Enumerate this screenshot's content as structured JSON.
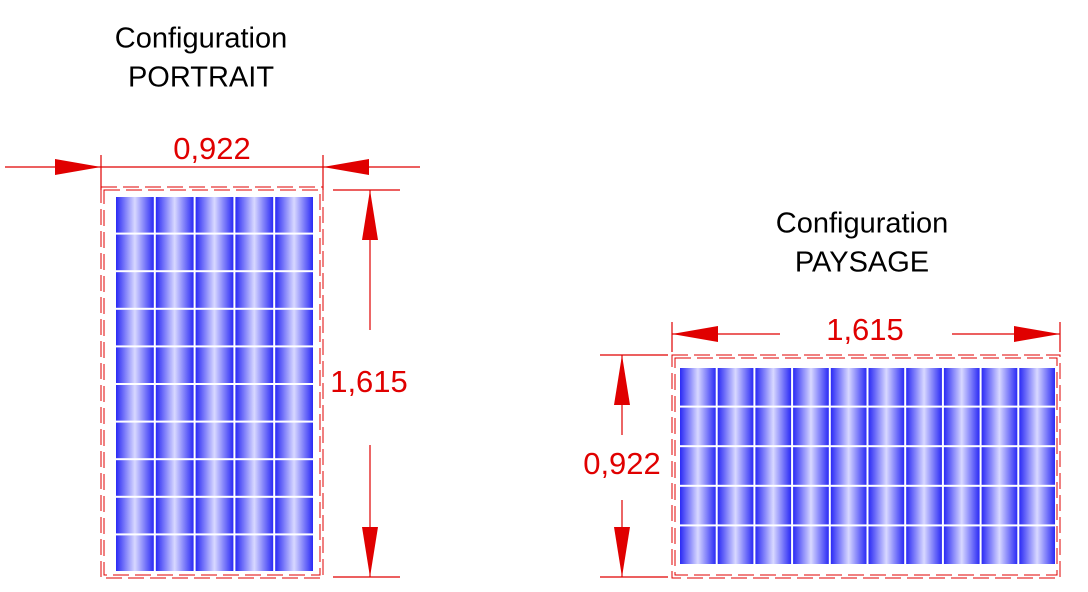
{
  "portrait": {
    "title": "Configuration",
    "subtitle": "PORTRAIT",
    "width_label": "0,922",
    "height_label": "1,615"
  },
  "paysage": {
    "title": "Configuration",
    "subtitle": "PAYSAGE",
    "width_label": "1,615",
    "height_label": "0,922"
  }
}
